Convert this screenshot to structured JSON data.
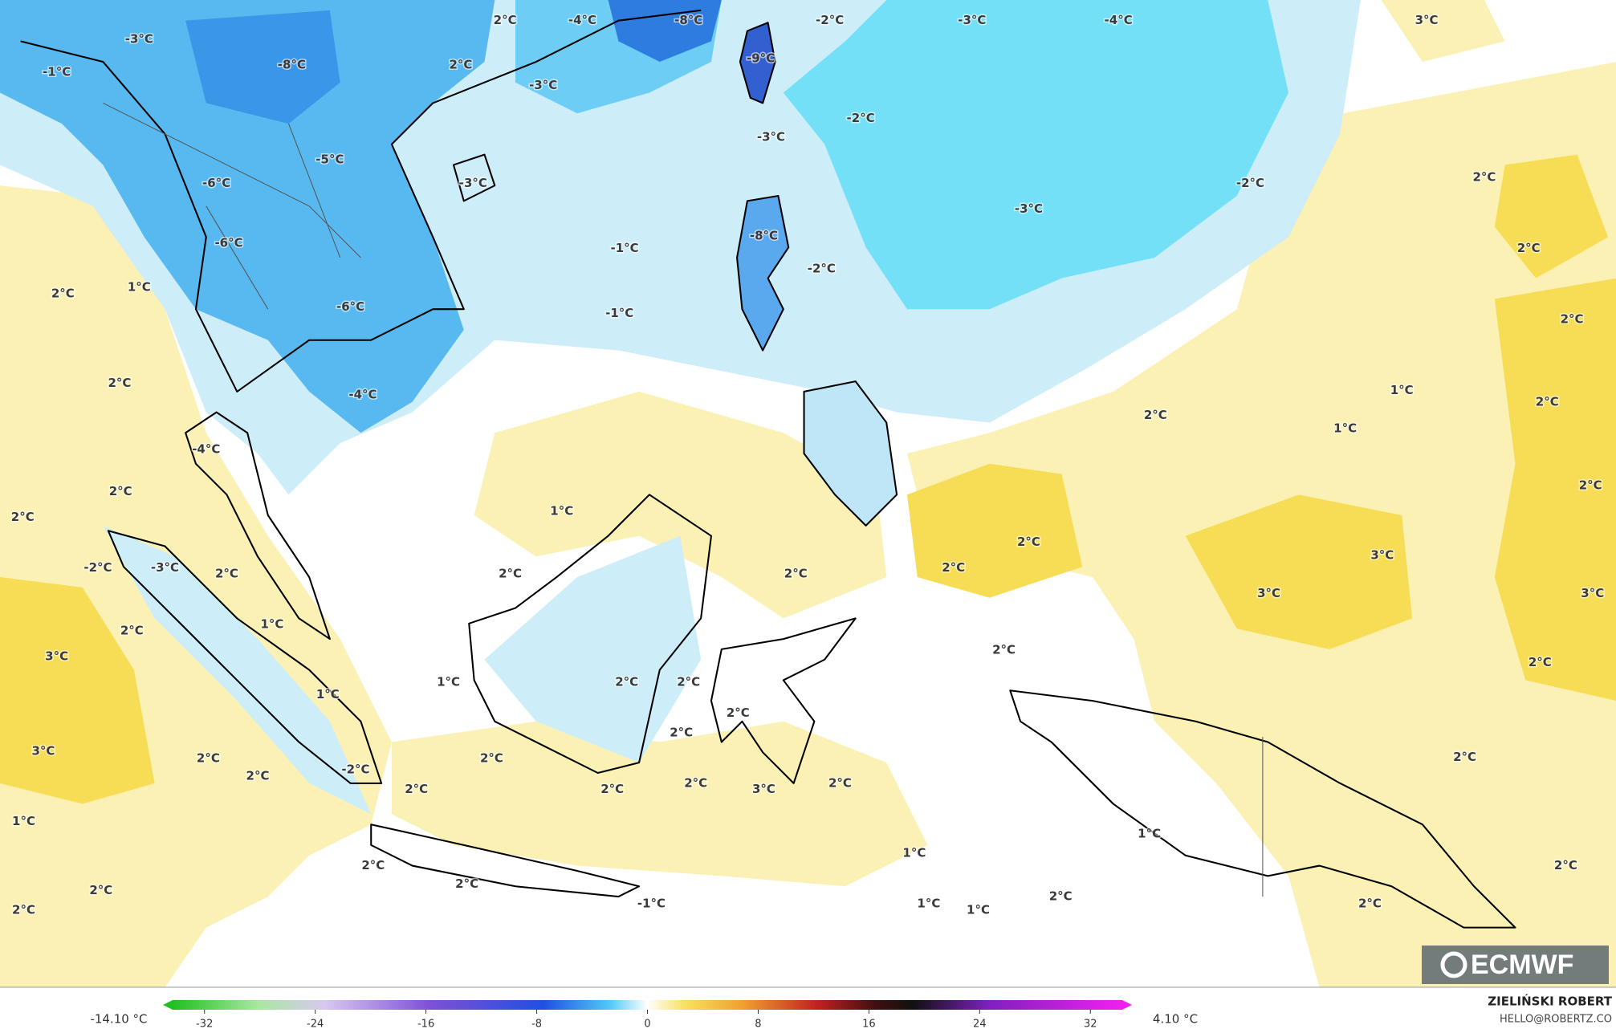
{
  "labels": [
    "-3°C",
    "-1°C",
    "-8°C",
    "2°C",
    "-4°C",
    "2°C",
    "-3°C",
    "-8°C",
    "-9°C",
    "-2°C",
    "-3°C",
    "-4°C",
    "3°C",
    "-5°C",
    "-6°C",
    "-3°C",
    "-3°C",
    "-2°C",
    "-2°C",
    "-3°C",
    "-6°C",
    "-8°C",
    "-1°C",
    "-2°C",
    "2°C",
    "2°C",
    "2°C",
    "1°C",
    "-6°C",
    "-1°C",
    "2°C",
    "2°C",
    "1°C",
    "-4°C",
    "2°C",
    "2°C",
    "1°C",
    "-4°C",
    "2°C",
    "2°C",
    "1°C",
    "2°C",
    "2°C",
    "-2°C",
    "-3°C",
    "2°C",
    "2°C",
    "2°C",
    "2°C",
    "3°C",
    "3°C",
    "3°C",
    "2°C",
    "1°C",
    "2°C",
    "3°C",
    "2°C",
    "1°C",
    "2°C",
    "2°C",
    "1°C",
    "2°C",
    "2°C",
    "3°C",
    "2°C",
    "2°C",
    "2°C",
    "-2°C",
    "2°C",
    "2°C",
    "2°C",
    "2°C",
    "3°C",
    "2°C",
    "1°C",
    "1°C",
    "1°C",
    "2°C",
    "2°C",
    "2°C",
    "2°C",
    "2°C",
    "-1°C",
    "1°C",
    "1°C",
    "2°C",
    "2°C"
  ],
  "colorbar": {
    "min_label": "-14.10 °C",
    "max_label": "4.10 °C",
    "lim": [
      -35,
      35
    ],
    "ticks": [
      -32,
      -24,
      -16,
      -8,
      0,
      8,
      16,
      24,
      32
    ]
  },
  "logo": "ECMWF",
  "credit": {
    "name": "ZIELIŃSKI ROBERT",
    "email": "HELLO@ROBERTZ.CO"
  }
}
